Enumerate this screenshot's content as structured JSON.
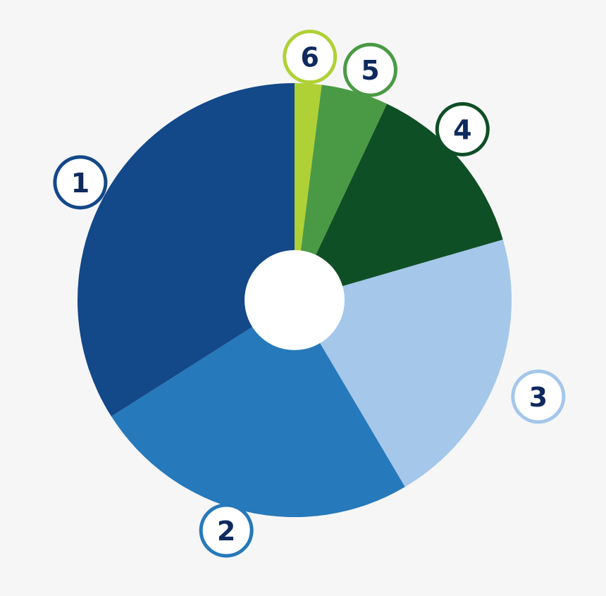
{
  "chart_data": {
    "type": "pie",
    "donut": true,
    "start_angle_deg": 0,
    "direction": "clockwise",
    "slices": [
      {
        "label": "6",
        "value": 2.0,
        "color": "#afd136"
      },
      {
        "label": "5",
        "value": 5.0,
        "color": "#4a9a45"
      },
      {
        "label": "4",
        "value": 13.5,
        "color": "#0f4f25"
      },
      {
        "label": "3",
        "value": 21.0,
        "color": "#a4c7ea"
      },
      {
        "label": "2",
        "value": 24.5,
        "color": "#2679ba"
      },
      {
        "label": "1",
        "value": 34.0,
        "color": "#134889"
      }
    ],
    "badge_text_color": "#0e2a5e",
    "badge_fill": "#ffffff",
    "background": "#f6f6f7"
  }
}
